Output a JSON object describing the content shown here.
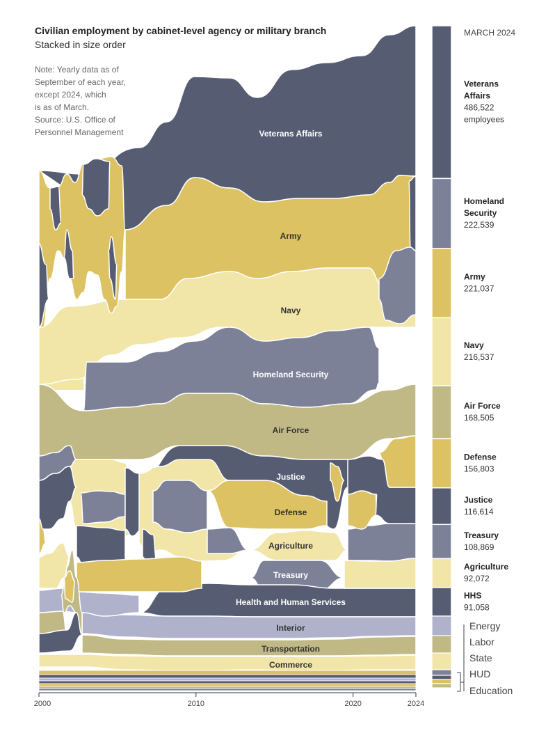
{
  "colors": {
    "slate": "#565c72",
    "gold": "#dcc262",
    "cream": "#f1e5a8",
    "gray_blue": "#7c8198",
    "olive": "#c1b985",
    "lavender": "#b0b2cb",
    "dark_text": "#ffffff",
    "light_text": "#333333"
  },
  "chart_data": {
    "type": "area",
    "subtype": "streamgraph (ranked stack, each year's agencies stacked in size order)",
    "title": "Civilian employment by cabinet-level agency or military branch",
    "subtitle": "Stacked in size order",
    "note_lines": [
      "Note: Yearly data as of",
      "September of each year,",
      "except 2024, which",
      "is as of March.",
      "Source: U.S. Office of",
      "Personnel Management"
    ],
    "x_ticks": [
      "2000",
      "2010",
      "2020",
      "2024"
    ],
    "x_range": [
      2000,
      2024
    ],
    "series": [
      {
        "name": "Veterans Affairs",
        "color": "slate",
        "value_2024": 486522
      },
      {
        "name": "Army",
        "color": "gold",
        "value_2024": 221037
      },
      {
        "name": "Navy",
        "color": "cream",
        "value_2024": 216537
      },
      {
        "name": "Homeland Security",
        "color": "gray_blue",
        "value_2024": 222539
      },
      {
        "name": "Air Force",
        "color": "olive",
        "value_2024": 168505
      },
      {
        "name": "Justice",
        "color": "slate",
        "value_2024": 116614
      },
      {
        "name": "Defense",
        "color": "gold",
        "value_2024": 156803
      },
      {
        "name": "Agriculture",
        "color": "cream",
        "value_2024": 92072
      },
      {
        "name": "Treasury",
        "color": "gray_blue",
        "value_2024": 108869
      },
      {
        "name": "Health and Human Services",
        "color": "slate",
        "value_2024": 91058
      },
      {
        "name": "Interior",
        "color": "lavender"
      },
      {
        "name": "Transportation",
        "color": "olive"
      },
      {
        "name": "Commerce",
        "color": "cream"
      }
    ],
    "legend": {
      "header": "MARCH 2024",
      "items": [
        {
          "lines": [
            "Veterans",
            "Affairs"
          ],
          "value": "486,522",
          "unit": "employees",
          "color": "slate"
        },
        {
          "lines": [
            "Homeland",
            "Security"
          ],
          "value": "222,539",
          "color": "gray_blue"
        },
        {
          "lines": [
            "Army"
          ],
          "value": "221,037",
          "color": "gold"
        },
        {
          "lines": [
            "Navy"
          ],
          "value": "216,537",
          "color": "cream"
        },
        {
          "lines": [
            "Air Force"
          ],
          "value": "168,505",
          "color": "olive"
        },
        {
          "lines": [
            "Defense"
          ],
          "value": "156,803",
          "color": "gold"
        },
        {
          "lines": [
            "Justice"
          ],
          "value": "116,614",
          "color": "slate"
        },
        {
          "lines": [
            "Treasury"
          ],
          "value": "108,869",
          "color": "gray_blue"
        },
        {
          "lines": [
            "Agriculture"
          ],
          "value": "92,072",
          "color": "cream"
        },
        {
          "lines": [
            "HHS"
          ],
          "value": "91,058",
          "color": "slate"
        }
      ],
      "small_items": [
        "Energy",
        "Labor",
        "State",
        "HUD",
        "Education"
      ]
    }
  }
}
